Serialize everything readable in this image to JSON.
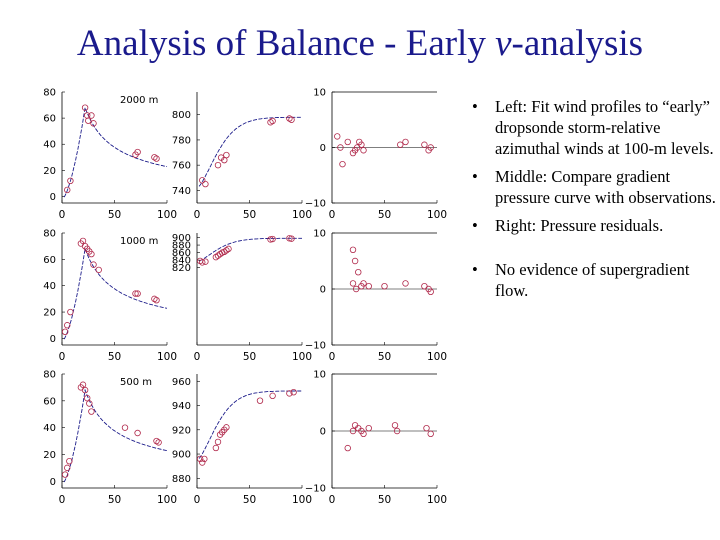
{
  "slide": {
    "title_prefix": "Analysis of Balance - Early ",
    "title_symbol": "ν",
    "title_suffix": "-analysis",
    "title_color": "#1a1a8c"
  },
  "bullets": [
    {
      "marker": "•",
      "text": "Left: Fit wind profiles to “early” dropsonde storm-relative azimuthal winds at 100-m levels."
    },
    {
      "marker": "•",
      "text": "Middle: Compare gradient pressure curve with observations."
    },
    {
      "marker": "•",
      "text": "Right: Pressure residuals."
    },
    {
      "marker": "•",
      "text": "No evidence of supergradient flow."
    }
  ],
  "colors": {
    "curve": "#1c1c8a",
    "points": "#b0284a",
    "axis": "#000000"
  },
  "chart_data": [
    {
      "type": "scatter",
      "panel": "wind",
      "row": 0,
      "label": "2000 m",
      "xlim": [
        0,
        100
      ],
      "ylim": [
        -5,
        80
      ],
      "xticks": [
        0,
        50,
        100
      ],
      "yticks": [
        80,
        60,
        40,
        20,
        0
      ],
      "points": [
        [
          5,
          5
        ],
        [
          8,
          12
        ],
        [
          22,
          68
        ],
        [
          24,
          62
        ],
        [
          25,
          58
        ],
        [
          28,
          62
        ],
        [
          30,
          56
        ],
        [
          70,
          32
        ],
        [
          72,
          34
        ],
        [
          88,
          30
        ],
        [
          90,
          29
        ]
      ],
      "curve": "wind"
    },
    {
      "type": "scatter",
      "panel": "pressure",
      "row": 0,
      "xlim": [
        0,
        100
      ],
      "ylim": [
        730,
        818
      ],
      "xticks": [
        0,
        50,
        100
      ],
      "yticks": [
        800,
        780,
        760,
        740
      ],
      "points": [
        [
          5,
          748
        ],
        [
          8,
          745
        ],
        [
          20,
          760
        ],
        [
          23,
          766
        ],
        [
          26,
          764
        ],
        [
          28,
          768
        ],
        [
          70,
          794
        ],
        [
          72,
          795
        ],
        [
          88,
          797
        ],
        [
          90,
          796
        ]
      ],
      "curve": {
        "pmin": 742,
        "pmax": 798,
        "r0": 25
      }
    },
    {
      "type": "scatter",
      "panel": "residual",
      "row": 0,
      "xlim": [
        0,
        100
      ],
      "ylim": [
        -10,
        10
      ],
      "xticks": [
        0,
        50,
        100
      ],
      "yticks": [
        10,
        0,
        -10
      ],
      "points": [
        [
          5,
          2
        ],
        [
          8,
          0
        ],
        [
          10,
          -3
        ],
        [
          15,
          1
        ],
        [
          20,
          -1
        ],
        [
          22,
          -0.5
        ],
        [
          24,
          0
        ],
        [
          26,
          1
        ],
        [
          28,
          0.5
        ],
        [
          30,
          -0.5
        ],
        [
          65,
          0.5
        ],
        [
          70,
          1
        ],
        [
          88,
          0.5
        ],
        [
          92,
          -0.5
        ],
        [
          94,
          0
        ]
      ]
    },
    {
      "type": "scatter",
      "panel": "wind",
      "row": 1,
      "label": "1000 m",
      "xlim": [
        0,
        100
      ],
      "ylim": [
        -5,
        80
      ],
      "xticks": [
        0,
        50,
        100
      ],
      "yticks": [
        80,
        60,
        40,
        20,
        0
      ],
      "points": [
        [
          3,
          5
        ],
        [
          5,
          10
        ],
        [
          8,
          20
        ],
        [
          18,
          72
        ],
        [
          20,
          74
        ],
        [
          22,
          70
        ],
        [
          24,
          68
        ],
        [
          26,
          66
        ],
        [
          28,
          64
        ],
        [
          30,
          56
        ],
        [
          35,
          52
        ],
        [
          70,
          34
        ],
        [
          72,
          34
        ],
        [
          88,
          30
        ],
        [
          90,
          29
        ]
      ],
      "curve": "wind"
    },
    {
      "type": "scatter",
      "panel": "pressure",
      "row": 1,
      "xlim": [
        0,
        100
      ],
      "ylim": [
        615,
        912
      ],
      "xticks": [
        0,
        50,
        100
      ],
      "yticks": [
        900,
        880,
        860,
        840,
        820
      ],
      "points": [
        [
          3,
          838
        ],
        [
          5,
          834
        ],
        [
          8,
          836
        ],
        [
          18,
          848
        ],
        [
          20,
          852
        ],
        [
          22,
          856
        ],
        [
          24,
          860
        ],
        [
          26,
          862
        ],
        [
          28,
          866
        ],
        [
          30,
          870
        ],
        [
          70,
          895
        ],
        [
          72,
          896
        ],
        [
          88,
          898
        ],
        [
          90,
          897
        ]
      ],
      "curve": {
        "pmin": 836,
        "pmax": 898,
        "r0": 24
      }
    },
    {
      "type": "scatter",
      "panel": "residual",
      "row": 1,
      "xlim": [
        0,
        100
      ],
      "ylim": [
        -10,
        10
      ],
      "xticks": [
        0,
        50,
        100
      ],
      "yticks": [
        10,
        0,
        -10
      ],
      "points": [
        [
          20,
          7
        ],
        [
          22,
          5
        ],
        [
          25,
          3
        ],
        [
          20,
          1
        ],
        [
          23,
          0
        ],
        [
          28,
          0.5
        ],
        [
          30,
          1
        ],
        [
          35,
          0.5
        ],
        [
          50,
          0.5
        ],
        [
          70,
          1
        ],
        [
          88,
          0.5
        ],
        [
          92,
          0
        ],
        [
          94,
          -0.5
        ]
      ]
    },
    {
      "type": "scatter",
      "panel": "wind",
      "row": 2,
      "label": "500 m",
      "xlim": [
        0,
        100
      ],
      "ylim": [
        -5,
        80
      ],
      "xticks": [
        0,
        50,
        100
      ],
      "yticks": [
        80,
        60,
        40,
        20,
        0
      ],
      "points": [
        [
          3,
          5
        ],
        [
          5,
          10
        ],
        [
          7,
          15
        ],
        [
          18,
          70
        ],
        [
          20,
          72
        ],
        [
          22,
          68
        ],
        [
          24,
          62
        ],
        [
          26,
          58
        ],
        [
          28,
          52
        ],
        [
          60,
          40
        ],
        [
          72,
          36
        ],
        [
          90,
          30
        ],
        [
          92,
          29
        ]
      ],
      "curve": "wind"
    },
    {
      "type": "scatter",
      "panel": "pressure",
      "row": 2,
      "xlim": [
        0,
        100
      ],
      "ylim": [
        872,
        966
      ],
      "xticks": [
        0,
        50,
        100
      ],
      "yticks": [
        960,
        940,
        920,
        900,
        880
      ],
      "points": [
        [
          3,
          896
        ],
        [
          5,
          893
        ],
        [
          7,
          896
        ],
        [
          18,
          905
        ],
        [
          20,
          910
        ],
        [
          22,
          916
        ],
        [
          24,
          918
        ],
        [
          26,
          920
        ],
        [
          28,
          922
        ],
        [
          60,
          944
        ],
        [
          72,
          948
        ],
        [
          88,
          950
        ],
        [
          92,
          951
        ]
      ],
      "curve": {
        "pmin": 895,
        "pmax": 952,
        "r0": 24
      }
    },
    {
      "type": "scatter",
      "panel": "residual",
      "row": 2,
      "xlim": [
        0,
        100
      ],
      "ylim": [
        -10,
        10
      ],
      "xticks": [
        0,
        50,
        100
      ],
      "yticks": [
        10,
        0,
        -10
      ],
      "points": [
        [
          15,
          -3
        ],
        [
          20,
          0
        ],
        [
          22,
          1
        ],
        [
          25,
          0.5
        ],
        [
          28,
          0
        ],
        [
          30,
          -0.5
        ],
        [
          35,
          0.5
        ],
        [
          60,
          1
        ],
        [
          62,
          0
        ],
        [
          90,
          0.5
        ],
        [
          94,
          -0.5
        ]
      ]
    }
  ]
}
